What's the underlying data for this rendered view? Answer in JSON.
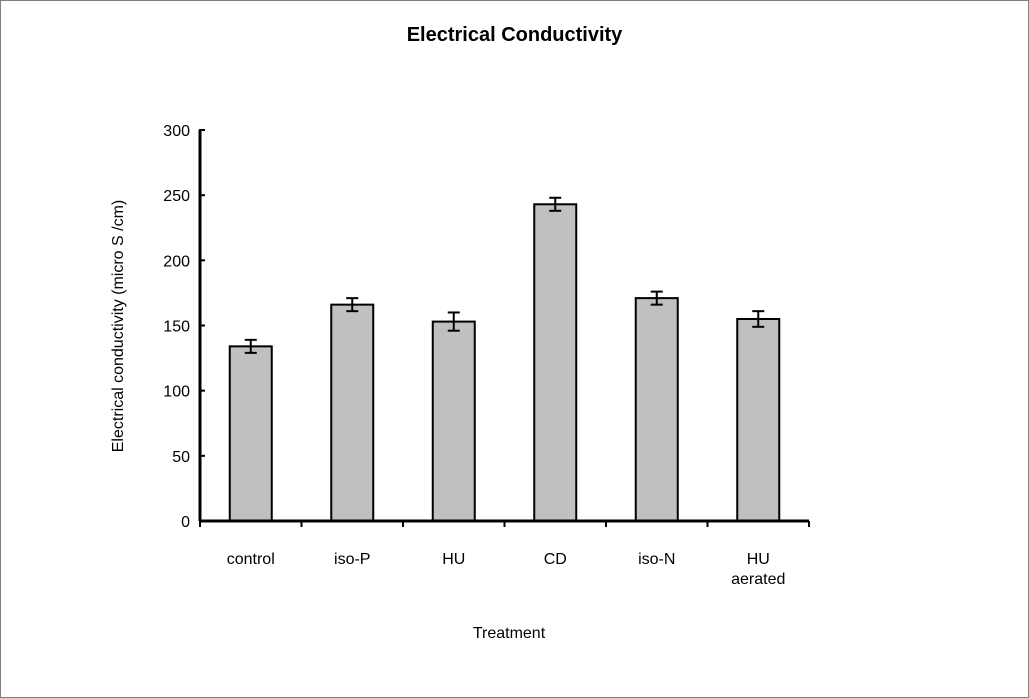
{
  "chart_data": {
    "type": "bar",
    "title": "Electrical Conductivity",
    "xlabel": "Treatment",
    "ylabel": "Electrical conductivity (micro S /cm)",
    "ylim": [
      0,
      300
    ],
    "yticks": [
      "0",
      "50",
      "100",
      "150",
      "200",
      "250",
      "300"
    ],
    "categories": [
      [
        "control"
      ],
      [
        "iso-P"
      ],
      [
        "HU"
      ],
      [
        "CD"
      ],
      [
        "iso-N"
      ],
      [
        "HU",
        "aerated"
      ]
    ],
    "values": [
      134,
      166,
      153,
      243,
      171,
      155
    ],
    "errors": [
      5,
      5,
      7,
      5,
      5,
      6
    ],
    "grid": false,
    "legend": "none",
    "bar_color": "#c0c0c0",
    "edge_color": "#000000"
  }
}
